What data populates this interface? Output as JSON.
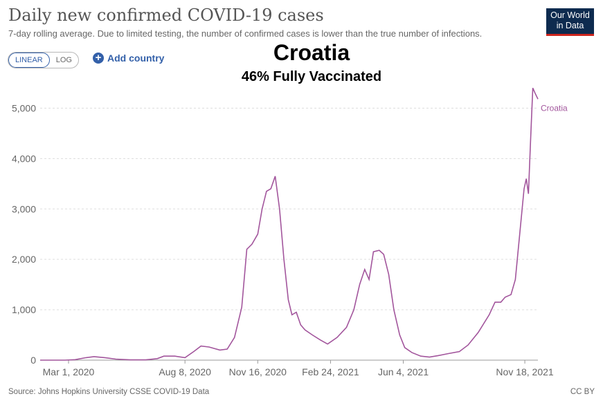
{
  "header": {
    "title": "Daily new confirmed COVID-19 cases",
    "subtitle": "7-day rolling average. Due to limited testing, the number of confirmed cases is lower than the true number of infections.",
    "logo_line1": "Our World",
    "logo_line2": "in Data"
  },
  "controls": {
    "linear_label": "LINEAR",
    "log_label": "LOG",
    "add_country_label": "Add country",
    "selected_scale": "LINEAR"
  },
  "overlay": {
    "title": "Croatia",
    "subtitle": "46% Fully Vaccinated"
  },
  "footer": {
    "source": "Source: Johns Hopkins University CSSE COVID-19 Data",
    "license": "CC BY"
  },
  "colors": {
    "series": "#a2559c",
    "grid": "#dddddd",
    "link": "#3360a9"
  },
  "chart_data": {
    "type": "line",
    "title": "Daily new confirmed COVID-19 cases",
    "x_start": "2020-01-22",
    "x_end": "2021-12-06",
    "ylim": [
      0,
      5500
    ],
    "yticks": [
      0,
      1000,
      2000,
      3000,
      4000,
      5000
    ],
    "ytick_labels": [
      "0",
      "1,000",
      "2,000",
      "3,000",
      "4,000",
      "5,000"
    ],
    "xticks": [
      "2020-03-01",
      "2020-08-08",
      "2020-11-16",
      "2021-02-24",
      "2021-06-04",
      "2021-11-18"
    ],
    "xtick_labels": [
      "Mar 1, 2020",
      "Aug 8, 2020",
      "Nov 16, 2020",
      "Feb 24, 2021",
      "Jun 4, 2021",
      "Nov 18, 2021"
    ],
    "grid": true,
    "legend": "end-of-line label",
    "series": [
      {
        "name": "Croatia",
        "points": [
          [
            "2020-01-22",
            0
          ],
          [
            "2020-02-25",
            0
          ],
          [
            "2020-03-10",
            10
          ],
          [
            "2020-03-25",
            50
          ],
          [
            "2020-04-05",
            70
          ],
          [
            "2020-04-20",
            50
          ],
          [
            "2020-05-05",
            20
          ],
          [
            "2020-05-25",
            5
          ],
          [
            "2020-06-15",
            5
          ],
          [
            "2020-07-01",
            30
          ],
          [
            "2020-07-10",
            80
          ],
          [
            "2020-07-25",
            80
          ],
          [
            "2020-08-08",
            50
          ],
          [
            "2020-08-20",
            170
          ],
          [
            "2020-08-30",
            280
          ],
          [
            "2020-09-10",
            260
          ],
          [
            "2020-09-25",
            200
          ],
          [
            "2020-10-05",
            220
          ],
          [
            "2020-10-15",
            450
          ],
          [
            "2020-10-25",
            1050
          ],
          [
            "2020-11-01",
            2200
          ],
          [
            "2020-11-08",
            2300
          ],
          [
            "2020-11-16",
            2500
          ],
          [
            "2020-11-22",
            3000
          ],
          [
            "2020-11-28",
            3350
          ],
          [
            "2020-12-04",
            3400
          ],
          [
            "2020-12-10",
            3650
          ],
          [
            "2020-12-16",
            3000
          ],
          [
            "2020-12-22",
            2000
          ],
          [
            "2020-12-28",
            1200
          ],
          [
            "2021-01-02",
            900
          ],
          [
            "2021-01-08",
            950
          ],
          [
            "2021-01-14",
            700
          ],
          [
            "2021-01-20",
            600
          ],
          [
            "2021-01-30",
            500
          ],
          [
            "2021-02-10",
            400
          ],
          [
            "2021-02-20",
            320
          ],
          [
            "2021-03-05",
            450
          ],
          [
            "2021-03-18",
            650
          ],
          [
            "2021-03-28",
            1000
          ],
          [
            "2021-04-05",
            1500
          ],
          [
            "2021-04-12",
            1800
          ],
          [
            "2021-04-18",
            1600
          ],
          [
            "2021-04-24",
            2150
          ],
          [
            "2021-05-02",
            2180
          ],
          [
            "2021-05-08",
            2100
          ],
          [
            "2021-05-15",
            1700
          ],
          [
            "2021-05-22",
            1000
          ],
          [
            "2021-05-30",
            500
          ],
          [
            "2021-06-06",
            250
          ],
          [
            "2021-06-16",
            150
          ],
          [
            "2021-06-28",
            80
          ],
          [
            "2021-07-10",
            60
          ],
          [
            "2021-07-22",
            90
          ],
          [
            "2021-08-05",
            130
          ],
          [
            "2021-08-20",
            170
          ],
          [
            "2021-09-01",
            300
          ],
          [
            "2021-09-15",
            550
          ],
          [
            "2021-09-30",
            900
          ],
          [
            "2021-10-08",
            1150
          ],
          [
            "2021-10-16",
            1150
          ],
          [
            "2021-10-22",
            1250
          ],
          [
            "2021-10-30",
            1300
          ],
          [
            "2021-11-05",
            1600
          ],
          [
            "2021-11-11",
            2500
          ],
          [
            "2021-11-17",
            3400
          ],
          [
            "2021-11-20",
            3600
          ],
          [
            "2021-11-23",
            3300
          ],
          [
            "2021-11-26",
            4400
          ],
          [
            "2021-11-29",
            5400
          ],
          [
            "2021-12-02",
            5300
          ],
          [
            "2021-12-06",
            5180
          ]
        ]
      }
    ]
  }
}
